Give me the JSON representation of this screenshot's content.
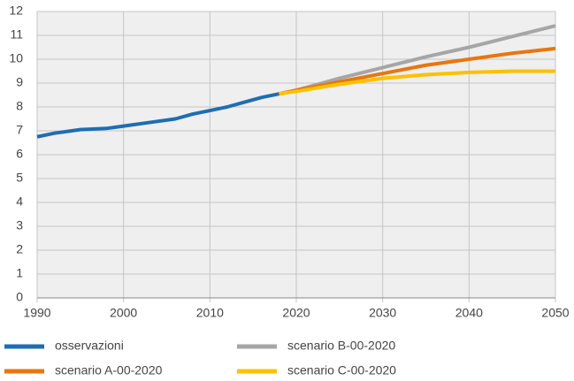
{
  "chart_data": {
    "type": "line",
    "x": [
      1990,
      1992,
      1995,
      1998,
      2000,
      2003,
      2006,
      2008,
      2010,
      2012,
      2014,
      2016,
      2018,
      2020,
      2025,
      2030,
      2035,
      2040,
      2045,
      2050
    ],
    "series": [
      {
        "name": "osservazioni",
        "color": "#1f6db3",
        "values": [
          6.75,
          6.9,
          7.05,
          7.1,
          7.2,
          7.35,
          7.5,
          7.7,
          7.85,
          8.0,
          8.2,
          8.4,
          8.55,
          null,
          null,
          null,
          null,
          null,
          null,
          null
        ]
      },
      {
        "name": "scenario A-00-2020",
        "color": "#e8760f",
        "values": [
          null,
          null,
          null,
          null,
          null,
          null,
          null,
          null,
          null,
          null,
          null,
          null,
          8.55,
          8.7,
          9.05,
          9.4,
          9.75,
          10.0,
          10.25,
          10.45
        ]
      },
      {
        "name": "scenario B-00-2020",
        "color": "#a6a6a6",
        "values": [
          null,
          null,
          null,
          null,
          null,
          null,
          null,
          null,
          null,
          null,
          null,
          null,
          8.55,
          8.7,
          9.2,
          9.65,
          10.1,
          10.5,
          10.95,
          11.4
        ]
      },
      {
        "name": "scenario C-00-2020",
        "color": "#ffc000",
        "values": [
          null,
          null,
          null,
          null,
          null,
          null,
          null,
          null,
          null,
          null,
          null,
          null,
          8.55,
          8.65,
          8.95,
          9.2,
          9.35,
          9.45,
          9.5,
          9.5
        ]
      }
    ],
    "xlim": [
      1990,
      2050
    ],
    "xticks": [
      1990,
      2000,
      2010,
      2020,
      2030,
      2040,
      2050
    ],
    "ylim": [
      0,
      12
    ],
    "yticks": [
      0,
      1,
      2,
      3,
      4,
      5,
      6,
      7,
      8,
      9,
      10,
      11,
      12
    ],
    "grid": true
  }
}
